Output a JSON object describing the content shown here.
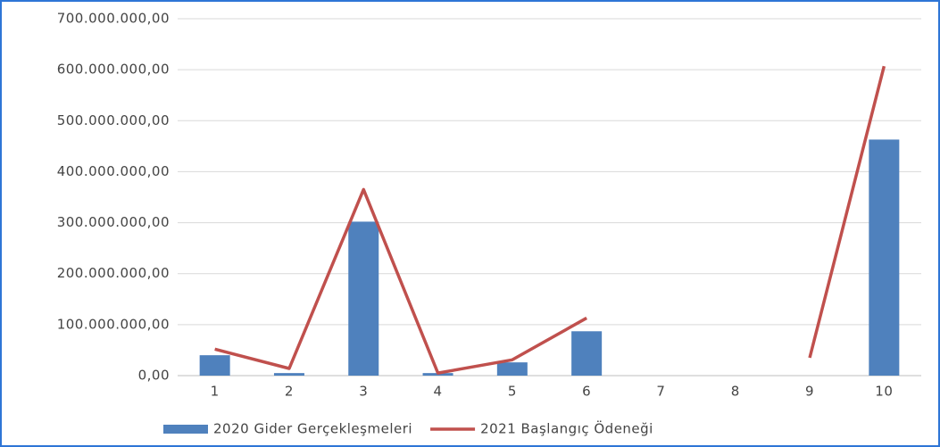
{
  "chart_data": {
    "type": "bar-line",
    "categories": [
      "1",
      "2",
      "3",
      "4",
      "5",
      "6",
      "7",
      "8",
      "9",
      "10"
    ],
    "series": [
      {
        "name": "2020 Gider Gerçekleşmeleri",
        "type": "bar",
        "color": "#4f81bd",
        "values": [
          40000000,
          5000000,
          302000000,
          5000000,
          26000000,
          87000000,
          null,
          null,
          null,
          463000000
        ]
      },
      {
        "name": "2021 Başlangıç Ödeneği",
        "type": "line",
        "color": "#c0504d",
        "values": [
          52000000,
          14000000,
          365000000,
          5000000,
          31000000,
          113000000,
          null,
          null,
          35000000,
          607000000
        ]
      }
    ],
    "ylim": [
      0,
      700000000
    ],
    "yticks": [
      {
        "value": 0,
        "label": "0,00"
      },
      {
        "value": 100000000,
        "label": "100.000.000,00"
      },
      {
        "value": 200000000,
        "label": "200.000.000,00"
      },
      {
        "value": 300000000,
        "label": "300.000.000,00"
      },
      {
        "value": 400000000,
        "label": "400.000.000,00"
      },
      {
        "value": 500000000,
        "label": "500.000.000,00"
      },
      {
        "value": 600000000,
        "label": "600.000.000,00"
      },
      {
        "value": 700000000,
        "label": "700.000.000,00"
      }
    ],
    "grid": true,
    "legend": "bottom"
  }
}
